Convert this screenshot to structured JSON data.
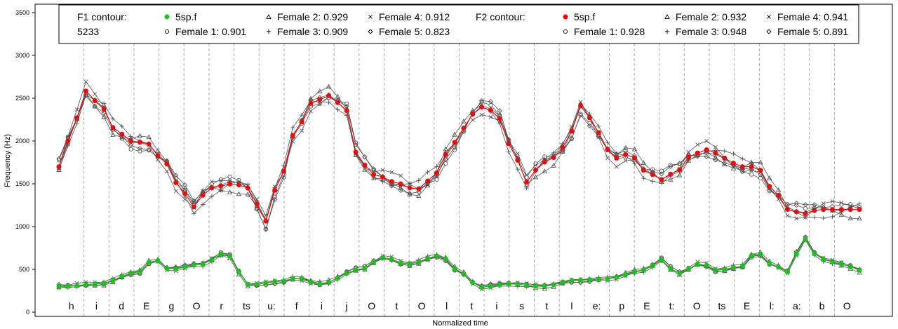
{
  "chart_data": {
    "type": "line",
    "xlabel": "Normalized time",
    "ylabel": "Frequency (Hz)",
    "ylim": [
      0,
      3500
    ],
    "y_ticks": [
      0,
      500,
      1000,
      1500,
      2000,
      2500,
      3000,
      3500
    ],
    "grid": "vertical dashed lines at segment boundaries",
    "legend_position": "top",
    "x_points": 90,
    "segments": [
      "h",
      "i",
      "d",
      "E",
      "g",
      "O",
      "r",
      "ts",
      "u:",
      "f",
      "i",
      "j",
      "O",
      "t",
      "O",
      "l",
      "t",
      "i",
      "s",
      "t",
      "l",
      "e:",
      "p",
      "E",
      "t:",
      "O",
      "ts",
      "E",
      "l:",
      "a:",
      "b",
      "O"
    ],
    "legend": {
      "f1_title": "F1 contour:",
      "f1_subtitle": "5233",
      "f2_title": "F2 contour:",
      "f1_entries": [
        {
          "marker": "filled-circle",
          "label": "5sp.f"
        },
        {
          "marker": "open-circle",
          "label": "Female 1: 0.901"
        },
        {
          "marker": "triangle",
          "label": "Female 2: 0.929"
        },
        {
          "marker": "plus",
          "label": "Female 3: 0.909"
        },
        {
          "marker": "cross",
          "label": "Female 4: 0.912"
        },
        {
          "marker": "diamond",
          "label": "Female 5: 0.823"
        }
      ],
      "f2_entries": [
        {
          "marker": "filled-circle",
          "label": "5sp.f"
        },
        {
          "marker": "open-circle",
          "label": "Female 1: 0.928"
        },
        {
          "marker": "triangle",
          "label": "Female 2: 0.932"
        },
        {
          "marker": "plus",
          "label": "Female 3: 0.948"
        },
        {
          "marker": "cross",
          "label": "Female 4: 0.941"
        },
        {
          "marker": "diamond",
          "label": "Female 5: 0.891"
        }
      ]
    },
    "f1_anchors": [
      [
        0,
        300
      ],
      [
        5,
        330
      ],
      [
        10,
        470
      ],
      [
        12,
        620
      ],
      [
        14,
        500
      ],
      [
        18,
        560
      ],
      [
        21,
        690
      ],
      [
        24,
        320
      ],
      [
        28,
        360
      ],
      [
        30,
        400
      ],
      [
        33,
        330
      ],
      [
        38,
        500
      ],
      [
        41,
        640
      ],
      [
        44,
        560
      ],
      [
        48,
        660
      ],
      [
        51,
        450
      ],
      [
        53,
        290
      ],
      [
        57,
        330
      ],
      [
        61,
        300
      ],
      [
        65,
        370
      ],
      [
        69,
        390
      ],
      [
        74,
        490
      ],
      [
        76,
        610
      ],
      [
        78,
        450
      ],
      [
        81,
        570
      ],
      [
        83,
        490
      ],
      [
        86,
        530
      ],
      [
        88,
        700
      ],
      [
        90,
        560
      ],
      [
        92,
        470
      ],
      [
        94,
        860
      ],
      [
        96,
        620
      ],
      [
        99,
        560
      ],
      [
        101,
        490
      ]
    ],
    "f2_anchors": [
      [
        0,
        1700
      ],
      [
        2,
        2200
      ],
      [
        3,
        2600
      ],
      [
        5,
        2450
      ],
      [
        7,
        2150
      ],
      [
        9,
        2000
      ],
      [
        11,
        1980
      ],
      [
        13,
        1800
      ],
      [
        15,
        1500
      ],
      [
        17,
        1230
      ],
      [
        19,
        1450
      ],
      [
        22,
        1500
      ],
      [
        24,
        1450
      ],
      [
        26,
        1060
      ],
      [
        28,
        1600
      ],
      [
        30,
        2150
      ],
      [
        32,
        2450
      ],
      [
        34,
        2530
      ],
      [
        36,
        2400
      ],
      [
        38,
        1750
      ],
      [
        40,
        1600
      ],
      [
        43,
        1500
      ],
      [
        45,
        1430
      ],
      [
        47,
        1550
      ],
      [
        49,
        1850
      ],
      [
        51,
        2150
      ],
      [
        53,
        2400
      ],
      [
        55,
        2350
      ],
      [
        57,
        1950
      ],
      [
        59,
        1520
      ],
      [
        61,
        1750
      ],
      [
        63,
        1820
      ],
      [
        64,
        2000
      ],
      [
        66,
        2420
      ],
      [
        68,
        2100
      ],
      [
        70,
        1800
      ],
      [
        72,
        1850
      ],
      [
        74,
        1650
      ],
      [
        76,
        1550
      ],
      [
        78,
        1650
      ],
      [
        80,
        1850
      ],
      [
        82,
        1900
      ],
      [
        84,
        1800
      ],
      [
        86,
        1700
      ],
      [
        88,
        1700
      ],
      [
        90,
        1450
      ],
      [
        92,
        1200
      ],
      [
        94,
        1150
      ],
      [
        96,
        1200
      ]
    ],
    "series": [
      {
        "name": "5sp.f",
        "formant": "F1",
        "color": "#1fbf1f",
        "marker": "filled-circle"
      },
      {
        "name": "Female 1",
        "formant": "F1",
        "color": "#555555",
        "marker": "open-circle"
      },
      {
        "name": "Female 2",
        "formant": "F1",
        "color": "#555555",
        "marker": "triangle"
      },
      {
        "name": "Female 3",
        "formant": "F1",
        "color": "#555555",
        "marker": "plus"
      },
      {
        "name": "Female 4",
        "formant": "F1",
        "color": "#555555",
        "marker": "cross"
      },
      {
        "name": "Female 5",
        "formant": "F1",
        "color": "#555555",
        "marker": "diamond"
      },
      {
        "name": "5sp.f",
        "formant": "F2",
        "color": "#dd1111",
        "marker": "filled-circle"
      },
      {
        "name": "Female 1",
        "formant": "F2",
        "color": "#555555",
        "marker": "open-circle"
      },
      {
        "name": "Female 2",
        "formant": "F2",
        "color": "#555555",
        "marker": "triangle"
      },
      {
        "name": "Female 3",
        "formant": "F2",
        "color": "#555555",
        "marker": "plus"
      },
      {
        "name": "Female 4",
        "formant": "F2",
        "color": "#555555",
        "marker": "cross"
      },
      {
        "name": "Female 5",
        "formant": "F2",
        "color": "#555555",
        "marker": "diamond"
      }
    ]
  }
}
